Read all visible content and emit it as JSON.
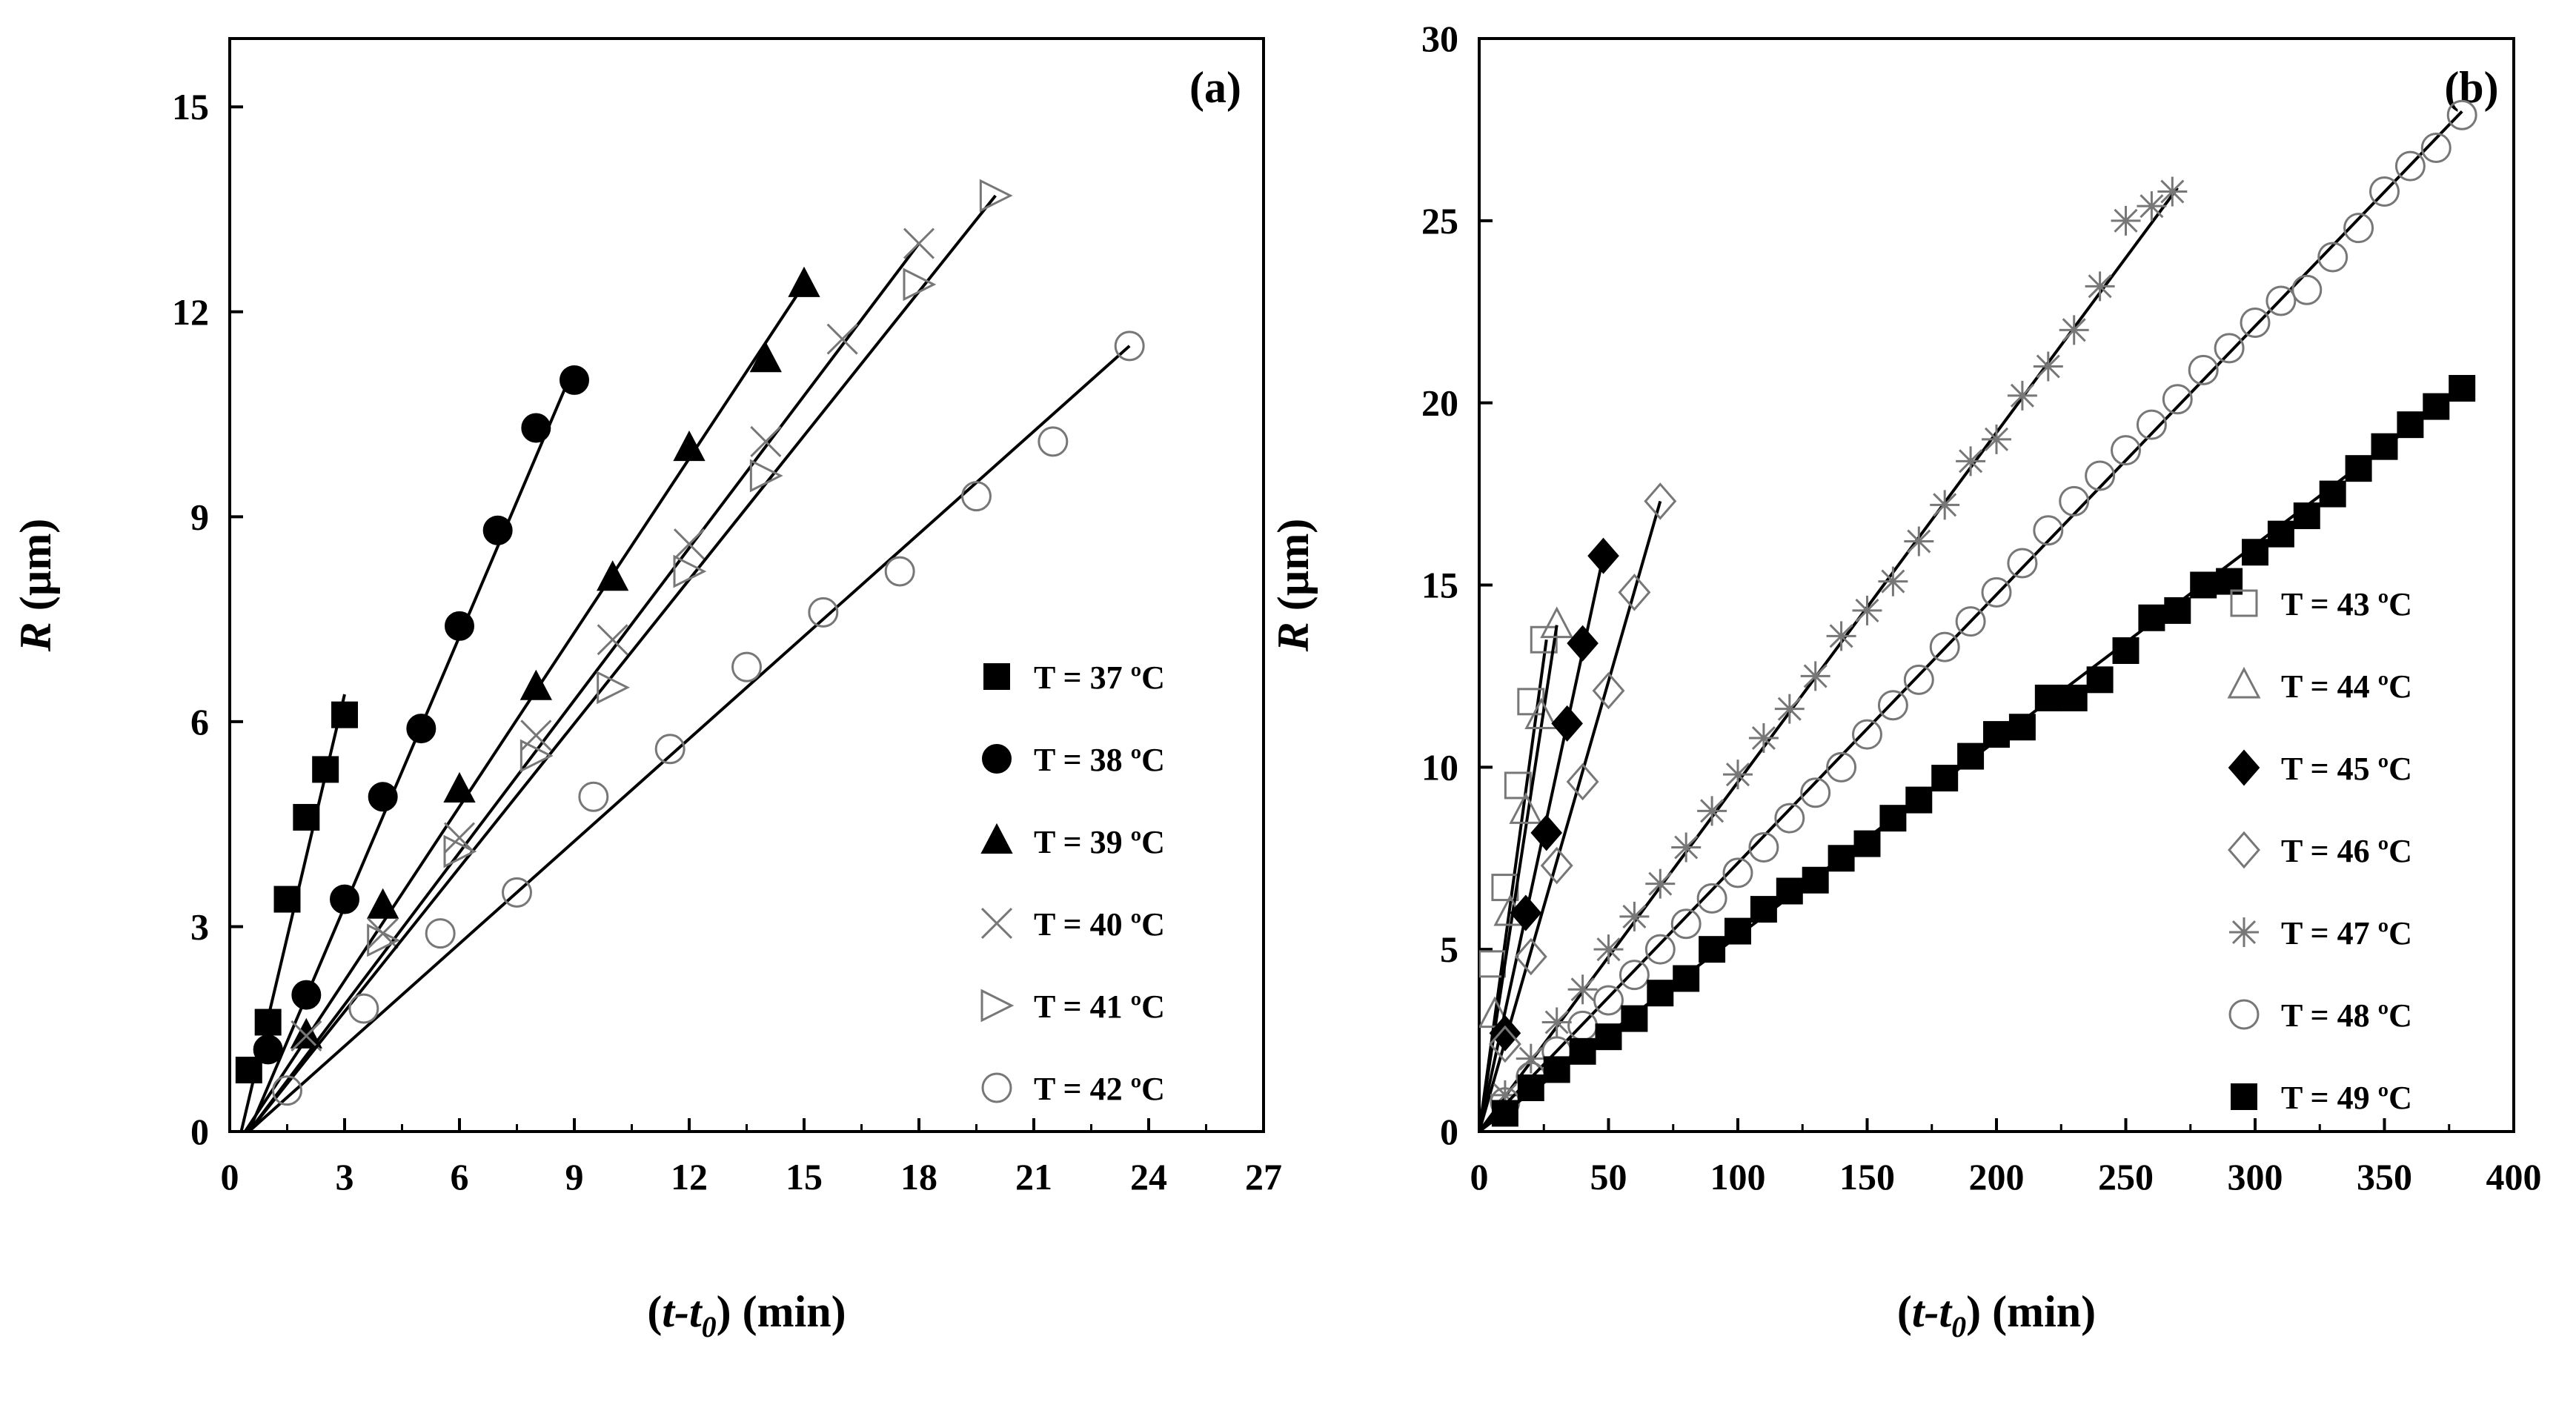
{
  "chart_data": [
    {
      "panel": "(a)",
      "type": "scatter",
      "xlabel": "(t-t0) (min)",
      "ylabel": "R (µm)",
      "xlim": [
        0,
        27
      ],
      "ylim": [
        0,
        16
      ],
      "xticks": [
        0,
        3,
        6,
        9,
        12,
        15,
        18,
        21,
        24,
        27
      ],
      "yticks": [
        0,
        3,
        6,
        9,
        12,
        15
      ],
      "legend_position": "bottom-right",
      "series": [
        {
          "name": "T = 37 ºC",
          "marker": "square-filled",
          "x": [
            0.5,
            1.0,
            1.5,
            2.0,
            2.5,
            3.0
          ],
          "y": [
            0.9,
            1.6,
            3.4,
            4.6,
            5.3,
            6.1
          ],
          "fit": [
            [
              0.3,
              0.0
            ],
            [
              3.0,
              6.4
            ]
          ]
        },
        {
          "name": "T = 38 ºC",
          "marker": "circle-filled",
          "x": [
            1.0,
            2.0,
            3.0,
            4.0,
            5.0,
            6.0,
            7.0,
            8.0,
            9.0
          ],
          "y": [
            1.2,
            2.0,
            3.4,
            4.9,
            5.9,
            7.4,
            8.8,
            10.3,
            11.0
          ],
          "fit": [
            [
              0.5,
              0.0
            ],
            [
              9.0,
              11.2
            ]
          ]
        },
        {
          "name": "T = 39 ºC",
          "marker": "triangle-filled",
          "x": [
            2.0,
            4.0,
            6.0,
            8.0,
            10.0,
            12.0,
            14.0,
            15.0
          ],
          "y": [
            1.4,
            3.3,
            5.0,
            6.5,
            8.1,
            10.0,
            11.3,
            12.4
          ],
          "fit": [
            [
              0.4,
              0.0
            ],
            [
              15.0,
              12.4
            ]
          ]
        },
        {
          "name": "T = 40 ºC",
          "marker": "x",
          "x": [
            2.0,
            4.0,
            6.0,
            8.0,
            10.0,
            12.0,
            14.0,
            16.0,
            18.0
          ],
          "y": [
            1.4,
            2.9,
            4.3,
            5.8,
            7.2,
            8.6,
            10.1,
            11.6,
            13.0
          ],
          "fit": [
            [
              0.5,
              0.0
            ],
            [
              18.0,
              13.0
            ]
          ]
        },
        {
          "name": "T = 41 ºC",
          "marker": "triangle-right-open",
          "x": [
            4.0,
            6.0,
            8.0,
            10.0,
            12.0,
            14.0,
            18.0,
            20.0
          ],
          "y": [
            2.8,
            4.1,
            5.5,
            6.5,
            8.2,
            9.6,
            12.4,
            13.7
          ],
          "fit": [
            [
              0.5,
              0.0
            ],
            [
              20.0,
              13.7
            ]
          ]
        },
        {
          "name": "T = 42 ºC",
          "marker": "circle-open",
          "x": [
            1.5,
            3.5,
            5.5,
            7.5,
            9.5,
            11.5,
            13.5,
            15.5,
            17.5,
            19.5,
            21.5,
            23.5
          ],
          "y": [
            0.6,
            1.8,
            2.9,
            3.5,
            4.9,
            5.6,
            6.8,
            7.6,
            8.2,
            9.3,
            10.1,
            11.5
          ],
          "fit": [
            [
              0.5,
              0.0
            ],
            [
              23.5,
              11.5
            ]
          ]
        }
      ]
    },
    {
      "panel": "(b)",
      "type": "scatter",
      "xlabel": "(t-t0) (min)",
      "ylabel": "R (µm)",
      "xlim": [
        0,
        400
      ],
      "ylim": [
        0,
        30
      ],
      "xticks": [
        0,
        50,
        100,
        150,
        200,
        250,
        300,
        350,
        400
      ],
      "yticks": [
        0,
        5,
        10,
        15,
        20,
        25,
        30
      ],
      "legend_position": "bottom-right",
      "series": [
        {
          "name": "T = 43 ºC",
          "marker": "square-open",
          "x": [
            5,
            10,
            15,
            20,
            25
          ],
          "y": [
            4.6,
            6.7,
            9.5,
            11.8,
            13.5
          ],
          "fit": [
            [
              0.0,
              0.0
            ],
            [
              26.0,
              13.5
            ]
          ]
        },
        {
          "name": "T = 44 ºC",
          "marker": "triangle-open",
          "x": [
            6,
            12,
            18,
            24,
            30
          ],
          "y": [
            3.2,
            6.0,
            8.8,
            11.4,
            13.9
          ],
          "fit": [
            [
              0.0,
              0.0
            ],
            [
              30.0,
              13.9
            ]
          ]
        },
        {
          "name": "T = 45 ºC",
          "marker": "diamond-filled",
          "x": [
            10,
            18,
            26,
            34,
            40,
            48
          ],
          "y": [
            2.7,
            6.0,
            8.2,
            11.2,
            13.4,
            15.8
          ],
          "fit": [
            [
              0.0,
              0.0
            ],
            [
              48.0,
              15.8
            ]
          ]
        },
        {
          "name": "T = 46 ºC",
          "marker": "diamond-open",
          "x": [
            10,
            20,
            30,
            40,
            50,
            60,
            70
          ],
          "y": [
            2.4,
            4.8,
            7.3,
            9.6,
            12.1,
            14.8,
            17.3
          ],
          "fit": [
            [
              0.0,
              0.0
            ],
            [
              70.0,
              17.3
            ]
          ]
        },
        {
          "name": "T = 47 ºC",
          "marker": "asterisk",
          "x": [
            10,
            20,
            30,
            40,
            50,
            60,
            70,
            80,
            90,
            100,
            110,
            120,
            130,
            140,
            150,
            160,
            170,
            180,
            190,
            200,
            210,
            220,
            230,
            240,
            250,
            260,
            268
          ],
          "y": [
            1.0,
            2.0,
            3.0,
            3.9,
            5.0,
            5.9,
            6.8,
            7.8,
            8.8,
            9.8,
            10.8,
            11.6,
            12.5,
            13.6,
            14.3,
            15.1,
            16.2,
            17.2,
            18.4,
            19.0,
            20.2,
            21.0,
            22.0,
            23.2,
            25.0,
            25.4,
            25.8
          ],
          "fit": [
            [
              0.0,
              0.0
            ],
            [
              270.0,
              25.9
            ]
          ]
        },
        {
          "name": "T = 48 ºC",
          "marker": "circle-open",
          "x": [
            10,
            20,
            30,
            40,
            50,
            60,
            70,
            80,
            90,
            100,
            110,
            120,
            130,
            140,
            150,
            160,
            170,
            180,
            190,
            200,
            210,
            220,
            230,
            240,
            250,
            260,
            270,
            280,
            290,
            300,
            310,
            320,
            330,
            340,
            350,
            360,
            370,
            380
          ],
          "y": [
            0.8,
            1.5,
            2.2,
            2.9,
            3.6,
            4.3,
            5.0,
            5.7,
            6.4,
            7.1,
            7.8,
            8.6,
            9.3,
            10.0,
            10.9,
            11.7,
            12.4,
            13.3,
            14.0,
            14.8,
            15.6,
            16.5,
            17.3,
            18.0,
            18.7,
            19.4,
            20.1,
            20.9,
            21.5,
            22.2,
            22.8,
            23.1,
            24.0,
            24.8,
            25.8,
            26.5,
            27.0,
            27.9
          ],
          "fit": [
            [
              0.0,
              0.0
            ],
            [
              380.0,
              28.0
            ]
          ]
        },
        {
          "name": "T = 49 ºC",
          "marker": "square-filled",
          "x": [
            10,
            20,
            30,
            40,
            50,
            60,
            70,
            80,
            90,
            100,
            110,
            120,
            130,
            140,
            150,
            160,
            170,
            180,
            190,
            200,
            210,
            220,
            230,
            240,
            250,
            260,
            270,
            280,
            290,
            300,
            310,
            320,
            330,
            340,
            350,
            360,
            370,
            380
          ],
          "y": [
            0.5,
            1.2,
            1.7,
            2.2,
            2.6,
            3.1,
            3.8,
            4.2,
            5.0,
            5.5,
            6.1,
            6.6,
            6.9,
            7.5,
            7.9,
            8.6,
            9.1,
            9.7,
            10.3,
            10.9,
            11.1,
            11.9,
            11.9,
            12.4,
            13.2,
            14.1,
            14.3,
            15.0,
            15.1,
            15.9,
            16.4,
            16.9,
            17.5,
            18.2,
            18.8,
            19.4,
            19.9,
            20.4
          ],
          "fit": [
            [
              0.0,
              0.0
            ],
            [
              380.0,
              20.4
            ]
          ]
        }
      ]
    }
  ]
}
